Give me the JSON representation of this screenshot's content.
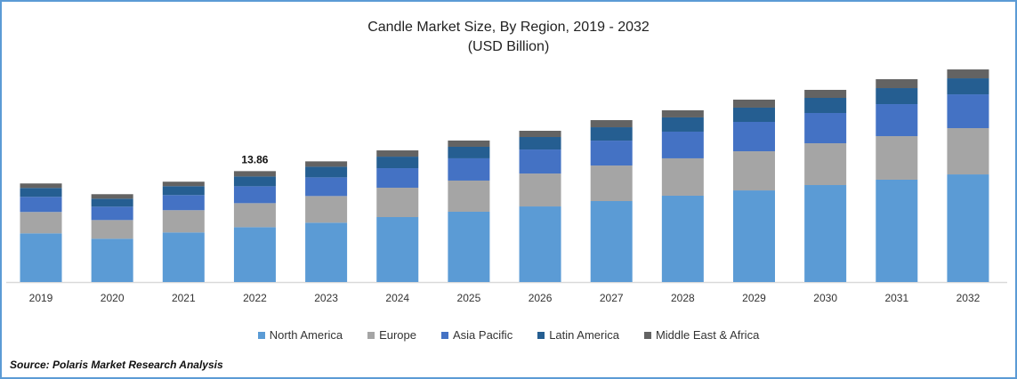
{
  "chart_data": {
    "type": "bar",
    "stacked": true,
    "title": "Candle Market Size, By Region, 2019 - 2032",
    "subtitle": "(USD Billion)",
    "xlabel": "",
    "ylabel": "",
    "ylim": [
      0,
      26
    ],
    "grid": false,
    "legend_position": "bottom",
    "categories": [
      "2019",
      "2020",
      "2021",
      "2022",
      "2023",
      "2024",
      "2025",
      "2026",
      "2027",
      "2028",
      "2029",
      "2030",
      "2031",
      "2032"
    ],
    "series": [
      {
        "name": "North America",
        "color": "#5B9BD5",
        "values": [
          6.08,
          5.41,
          6.19,
          6.85,
          7.41,
          8.11,
          8.78,
          9.44,
          10.11,
          10.78,
          11.44,
          12.11,
          12.78,
          13.44
        ]
      },
      {
        "name": "Europe",
        "color": "#A5A5A5",
        "values": [
          2.67,
          2.33,
          2.78,
          3.0,
          3.33,
          3.67,
          3.89,
          4.11,
          4.44,
          4.67,
          4.89,
          5.22,
          5.44,
          5.78
        ]
      },
      {
        "name": "Asia Pacific",
        "color": "#4472C4",
        "values": [
          1.89,
          1.67,
          1.89,
          2.11,
          2.33,
          2.44,
          2.78,
          3.0,
          3.11,
          3.33,
          3.67,
          3.78,
          4.0,
          4.22
        ]
      },
      {
        "name": "Latin America",
        "color": "#255E91",
        "values": [
          1.11,
          1.0,
          1.11,
          1.22,
          1.33,
          1.44,
          1.44,
          1.56,
          1.67,
          1.78,
          1.78,
          1.89,
          2.0,
          2.0
        ]
      },
      {
        "name": "Middle East & Africa",
        "color": "#636363",
        "values": [
          0.56,
          0.56,
          0.56,
          0.67,
          0.67,
          0.78,
          0.78,
          0.78,
          0.89,
          0.89,
          1.0,
          1.0,
          1.11,
          1.11
        ]
      }
    ],
    "annotations": [
      {
        "category": "2022",
        "text": "13.86"
      }
    ]
  },
  "source": "Source: Polaris  Market Research Analysis"
}
